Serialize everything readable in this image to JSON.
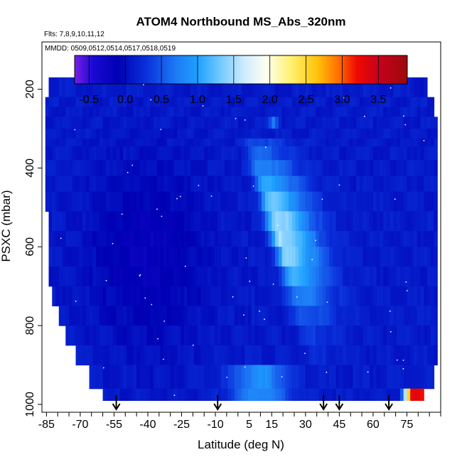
{
  "chart_data": {
    "type": "heatmap",
    "title": "ATOM4 Northbound MS_Abs_320nm",
    "subtitle_flights": "Flts: 7,8,9,10,11,12",
    "subtitle_dates": "MMDD: 0509,0512,0514,0517,0518,0519",
    "xlabel": "Latitude (deg N)",
    "ylabel": "PSXC (mbar)",
    "xlim": [
      -87,
      90
    ],
    "ylim": [
      1020,
      80
    ],
    "x_ticks": [
      -85,
      -70,
      -55,
      -40,
      -25,
      -10,
      5,
      15,
      30,
      45,
      60,
      75
    ],
    "y_ticks": [
      200,
      400,
      600,
      800,
      1000
    ],
    "colorbar": {
      "range": [
        -0.7,
        3.9
      ],
      "tick_values": [
        -0.5,
        0.0,
        0.5,
        1.0,
        1.5,
        2.0,
        2.5,
        3.0,
        3.5
      ],
      "tick_labels": [
        "-0.5",
        "0.0",
        "0.5",
        "1.0",
        "1.5",
        "2.0",
        "2.5",
        "3.0",
        "3.5"
      ],
      "stops": [
        {
          "value": -0.7,
          "color": "#7a1ee6"
        },
        {
          "value": -0.45,
          "color": "#1a0ad2"
        },
        {
          "value": -0.1,
          "color": "#0000b4"
        },
        {
          "value": 0.3,
          "color": "#0a32dc"
        },
        {
          "value": 0.7,
          "color": "#1e7af5"
        },
        {
          "value": 1.0,
          "color": "#1ea0ff"
        },
        {
          "value": 1.3,
          "color": "#6ec8ff"
        },
        {
          "value": 1.65,
          "color": "#cfecff"
        },
        {
          "value": 1.95,
          "color": "#fffff0"
        },
        {
          "value": 2.3,
          "color": "#fff06e"
        },
        {
          "value": 2.65,
          "color": "#ffc30a"
        },
        {
          "value": 2.95,
          "color": "#ff6e00"
        },
        {
          "value": 3.2,
          "color": "#f00a00"
        },
        {
          "value": 3.5,
          "color": "#c8001e"
        },
        {
          "value": 3.9,
          "color": "#9b0a0a"
        }
      ]
    },
    "arrow_latitudes": [
      -54,
      -9,
      38,
      45,
      67
    ],
    "pressure_levels": [
      170,
      220,
      245,
      270,
      300,
      325,
      345,
      380,
      420,
      460,
      510,
      560,
      600,
      650,
      700,
      750,
      800,
      850,
      900,
      960,
      990
    ],
    "field_model": {
      "background_value": 0.15,
      "south_min_value": -0.15,
      "plume_peak_value": 1.55,
      "plume_width_deg": 6,
      "plume_center_lat_at_400mbar": 10,
      "plume_center_lat_at_800mbar": 30,
      "surface_band_value": 0.9,
      "arctic_surface_peak_value": 3.3
    },
    "valid_region": [
      {
        "p": 170,
        "lat_min": -82,
        "lat_max": 82
      },
      {
        "p": 220,
        "lat_min": -86,
        "lat_max": 87
      },
      {
        "p": 300,
        "lat_min": -86,
        "lat_max": 88
      },
      {
        "p": 500,
        "lat_min": -85,
        "lat_max": 88
      },
      {
        "p": 700,
        "lat_min": -83,
        "lat_max": 88
      },
      {
        "p": 800,
        "lat_min": -78,
        "lat_max": 88
      },
      {
        "p": 900,
        "lat_min": -69,
        "lat_max": 88
      },
      {
        "p": 960,
        "lat_min": -62,
        "lat_max": 86
      },
      {
        "p": 1000,
        "lat_min": -56,
        "lat_max": 78
      }
    ],
    "grid": false,
    "legend": "colorbar-top"
  }
}
